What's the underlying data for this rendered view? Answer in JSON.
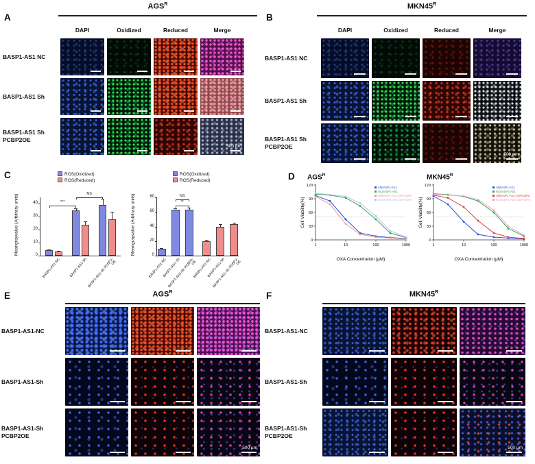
{
  "panel_a": {
    "label": "A",
    "title": "AGS",
    "title_sup": "R",
    "columns": [
      "DAPI",
      "Oxidized",
      "Reduced",
      "Merge"
    ],
    "rows": [
      "BASP1-AS1 NC",
      "BASP1-AS1 Sh",
      "BASP1-AS1 Sh PCBP2OE"
    ],
    "scale_bar": "500 μm"
  },
  "panel_b": {
    "label": "B",
    "title": "MKN45",
    "title_sup": "R",
    "columns": [
      "DAPI",
      "Oxidized",
      "Reduced",
      "Merge"
    ],
    "rows": [
      "BASP1-AS1 NC",
      "BASP1-AS1 Sh",
      "BASP1-AS1 Sh PCBP2OE"
    ],
    "scale_bar": "500 μm"
  },
  "panel_c": {
    "label": "C"
  },
  "panel_d": {
    "label": "D"
  },
  "panel_e": {
    "label": "E",
    "title": "AGS",
    "title_sup": "R",
    "rows": [
      "BASP1-AS1-NC",
      "BASP1-AS1-Sh",
      "BASP1-AS1-Sh PCBP2OE"
    ],
    "scale_bar": "500 μm"
  },
  "panel_f": {
    "label": "F",
    "title": "MKN45",
    "title_sup": "R",
    "rows": [
      "BASP1-AS1-NC",
      "BASP1-AS1-Sh",
      "BASP1-AS1-Sh PCBP2OE"
    ],
    "scale_bar": "500 μm"
  },
  "chart_data": [
    {
      "type": "bar",
      "ylabel": "Meangrayvalue (Arbitrary units)",
      "ylim": [
        0,
        45
      ],
      "yticks": [
        0,
        10,
        20,
        30,
        40
      ],
      "categories": [
        "BASP1-AS1-NC",
        "BASP1-AS1-Sh",
        "BASP1-AS1-Sh PCBP2-OE"
      ],
      "series": [
        {
          "name": "ROS(Oxidized)",
          "color": "#8089e0",
          "values": [
            4,
            35,
            39
          ],
          "errors": [
            0.6,
            1.5,
            5
          ]
        },
        {
          "name": "ROS(Reduced)",
          "color": "#ef8d8d",
          "values": [
            3,
            24,
            28
          ],
          "errors": [
            0.5,
            2.5,
            6
          ]
        }
      ],
      "sig": [
        {
          "i1": 0,
          "i2": 2,
          "label": "***",
          "yfrac": 0.86
        },
        {
          "i1": 2,
          "i2": 4,
          "label": "NS",
          "yfrac": 1.0
        }
      ]
    },
    {
      "type": "bar",
      "ylabel": "Meangrayvalue (Arbitrary units)",
      "ylim": [
        0,
        80
      ],
      "yticks": [
        0,
        20,
        40,
        60,
        80
      ],
      "bars": [
        {
          "label": "BASP1-AS1-NC",
          "value": 9,
          "error": 1,
          "color": "#8089e0"
        },
        {
          "label": "BASP1-AS1-Sh",
          "value": 63,
          "error": 2,
          "color": "#8089e0"
        },
        {
          "label": "BASP1-AS1-Sh PCBP2-OE",
          "value": 63,
          "error": 2.5,
          "color": "#8089e0"
        },
        {
          "label": "BASP1-AS1-NC",
          "value": 20,
          "error": 1.5,
          "color": "#ef8d8d"
        },
        {
          "label": "BASP1-AS1-Sh",
          "value": 40,
          "error": 3,
          "color": "#ef8d8d"
        },
        {
          "label": "BASP1-AS1-Sh PCBP2-OE",
          "value": 43,
          "error": 2,
          "color": "#ef8d8d"
        }
      ],
      "legend": [
        {
          "name": "ROS(Oxidized)",
          "color": "#8089e0"
        },
        {
          "name": "ROS(Reduced)",
          "color": "#ef8d8d"
        }
      ],
      "sig": [
        {
          "i1": 1,
          "i2": 2,
          "label": "**",
          "yfrac": 0.86
        },
        {
          "i1": 1,
          "i2": 2,
          "label": "NS",
          "yfrac": 0.97
        }
      ]
    },
    {
      "type": "line",
      "title": "AGS",
      "title_sup": "R",
      "xlabel": "OXA Concentration (μM)",
      "ylabel": "Cell Viability(%)",
      "yticks": [
        0,
        30,
        60,
        90,
        120
      ],
      "xticks": [
        1,
        10,
        100,
        1000
      ],
      "x": [
        1,
        3,
        10,
        30,
        100,
        300,
        1000
      ],
      "series": [
        {
          "name": "ShBASP1-AS1",
          "color": "#2f4bd6",
          "values": [
            97,
            85,
            45,
            15,
            8,
            5,
            3
          ]
        },
        {
          "name": "NCBASP1-AS1",
          "color": "#2fa84c",
          "values": [
            100,
            98,
            92,
            74,
            45,
            15,
            5
          ]
        },
        {
          "name": "ShBASP1-AS1-OEPCBP2",
          "color": "#f09a9a",
          "values": [
            95,
            78,
            35,
            12,
            6,
            4,
            2
          ]
        },
        {
          "name": "NCBASP1-AS1-OEPCBP2",
          "color": "#b9c3e6",
          "values": [
            102,
            99,
            95,
            80,
            52,
            20,
            6
          ]
        }
      ]
    },
    {
      "type": "line",
      "title": "MKN45",
      "title_sup": "R",
      "xlabel": "OXA Concentration (μM)",
      "ylabel": "Cell Viability(%)",
      "yticks": [
        0,
        30,
        60,
        90,
        120
      ],
      "xticks": [
        1,
        10,
        100,
        1000
      ],
      "x": [
        1,
        3,
        10,
        30,
        100,
        300,
        1000
      ],
      "series": [
        {
          "name": "ShBASP1-AS1",
          "color": "#2f4bd6",
          "values": [
            96,
            78,
            40,
            12,
            6,
            4,
            2
          ]
        },
        {
          "name": "NCBASP1-AS1",
          "color": "#2fa84c",
          "values": [
            101,
            99,
            95,
            85,
            60,
            25,
            8
          ]
        },
        {
          "name": "ShBASP1-AS1-OEPCBP2",
          "color": "#e23b3b",
          "values": [
            98,
            92,
            72,
            42,
            15,
            6,
            3
          ]
        },
        {
          "name": "NCBASP1-AS1-OEPCBP2",
          "color": "#ef9fd0",
          "values": [
            100,
            98,
            96,
            88,
            65,
            30,
            10
          ]
        }
      ]
    }
  ]
}
